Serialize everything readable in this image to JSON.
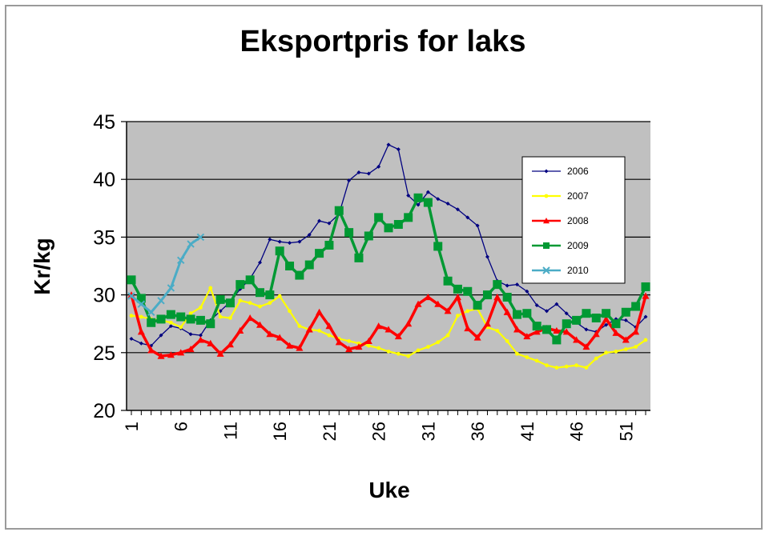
{
  "chart_data": {
    "type": "line",
    "title": "Eksportpris  for laks",
    "xlabel": "Uke",
    "ylabel": "Kr/kg",
    "ylim": [
      20,
      45
    ],
    "yticks": [
      20,
      25,
      30,
      35,
      40,
      45
    ],
    "xlim": [
      1,
      53
    ],
    "xticks": [
      1,
      6,
      11,
      16,
      21,
      26,
      31,
      36,
      41,
      46,
      51
    ],
    "grid": true,
    "legend_position": "top-right",
    "plot_background": "#c0c0c0",
    "series": [
      {
        "name": "2006",
        "color": "#000080",
        "marker": "diamond",
        "values": [
          26.2,
          25.8,
          25.6,
          26.5,
          27.3,
          27.1,
          26.6,
          26.5,
          27.8,
          28.6,
          29.4,
          30.5,
          31.4,
          32.8,
          34.8,
          34.6,
          34.5,
          34.6,
          35.2,
          36.4,
          36.2,
          37.0,
          39.9,
          40.6,
          40.5,
          41.1,
          43.0,
          42.6,
          38.6,
          37.8,
          38.9,
          38.3,
          37.9,
          37.4,
          36.7,
          36.0,
          33.3,
          31.2,
          30.8,
          30.9,
          30.3,
          29.1,
          28.6,
          29.2,
          28.4,
          27.6,
          27.0,
          26.8,
          27.4,
          27.9,
          27.8,
          27.2,
          28.1
        ]
      },
      {
        "name": "2007",
        "color": "#ffff00",
        "marker": "circle",
        "values": [
          28.2,
          28.1,
          27.9,
          27.8,
          27.6,
          27.2,
          28.4,
          28.9,
          30.6,
          28.1,
          28.0,
          29.5,
          29.3,
          29.0,
          29.3,
          29.9,
          28.6,
          27.3,
          27.0,
          26.9,
          26.5,
          26.2,
          26.0,
          25.8,
          25.6,
          25.4,
          25.1,
          24.9,
          24.7,
          25.2,
          25.5,
          25.9,
          26.5,
          28.2,
          28.6,
          28.8,
          27.2,
          26.9,
          26.0,
          24.9,
          24.6,
          24.3,
          23.9,
          23.7,
          23.8,
          23.9,
          23.7,
          24.5,
          25.0,
          25.1,
          25.3,
          25.5,
          26.1
        ]
      },
      {
        "name": "2008",
        "color": "#ff0000",
        "marker": "triangle",
        "values": [
          30.0,
          26.8,
          25.2,
          24.7,
          24.8,
          25.0,
          25.3,
          26.1,
          25.8,
          24.9,
          25.7,
          26.9,
          28.0,
          27.4,
          26.6,
          26.3,
          25.6,
          25.4,
          27.0,
          28.5,
          27.3,
          25.9,
          25.3,
          25.5,
          26.0,
          27.3,
          27.0,
          26.4,
          27.5,
          29.2,
          29.8,
          29.2,
          28.6,
          29.8,
          27.1,
          26.3,
          27.5,
          29.8,
          28.5,
          27.0,
          26.4,
          26.8,
          27.1,
          26.9,
          26.8,
          26.1,
          25.5,
          26.6,
          27.9,
          26.7,
          26.1,
          26.8,
          29.9
        ]
      },
      {
        "name": "2009",
        "color": "#009933",
        "marker": "square",
        "values": [
          31.3,
          29.7,
          27.6,
          27.9,
          28.3,
          28.1,
          27.9,
          27.8,
          27.5,
          29.6,
          29.3,
          30.9,
          31.3,
          30.2,
          30.0,
          33.8,
          32.5,
          31.7,
          32.6,
          33.6,
          34.3,
          37.3,
          35.4,
          33.2,
          35.1,
          36.7,
          35.8,
          36.1,
          36.7,
          38.4,
          38.0,
          34.2,
          31.2,
          30.5,
          30.3,
          29.1,
          30.0,
          30.9,
          29.8,
          28.3,
          28.4,
          27.3,
          27.0,
          26.1,
          27.5,
          27.8,
          28.4,
          28.0,
          28.4,
          27.5,
          28.5,
          29.0,
          30.7
        ]
      },
      {
        "name": "2010",
        "color": "#4bacc6",
        "marker": "cross",
        "values": [
          29.9,
          29.2,
          28.5,
          29.5,
          30.6,
          33.0,
          34.4,
          35.0,
          null,
          null,
          null,
          null,
          null,
          null,
          null,
          null,
          null,
          null,
          null,
          null,
          null,
          null,
          null,
          null,
          null,
          null,
          null,
          null,
          null,
          null,
          null,
          null,
          null,
          null,
          null,
          null,
          null,
          null,
          null,
          null,
          null,
          null,
          null,
          null,
          null,
          null,
          null,
          null,
          null,
          null,
          null,
          null,
          null
        ]
      }
    ]
  }
}
